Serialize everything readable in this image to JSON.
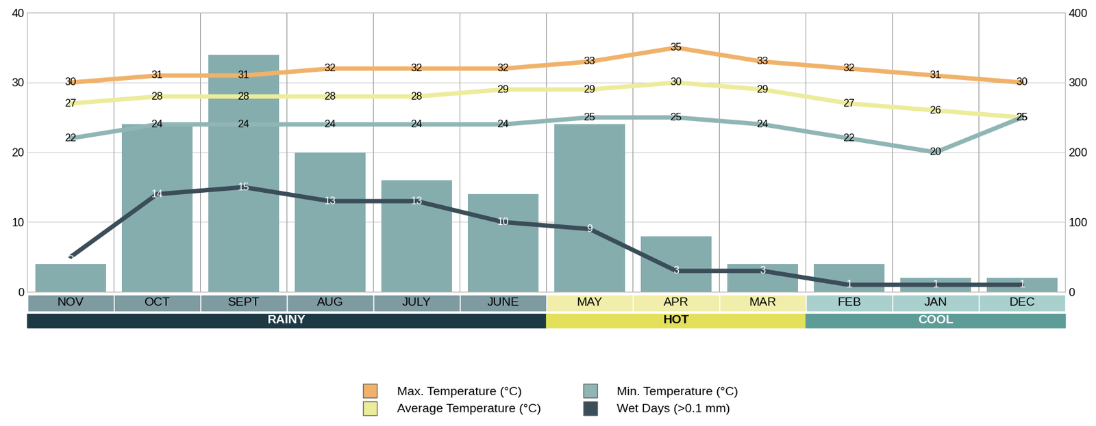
{
  "chart_data": {
    "type": "line",
    "categories": [
      "NOV",
      "OCT",
      "SEPT",
      "AUG",
      "JULY",
      "JUNE",
      "MAY",
      "APR",
      "MAR",
      "FEB",
      "JAN",
      "DEC"
    ],
    "series": [
      {
        "type": "bar",
        "axis": "y2",
        "color": "#86adae",
        "values": [
          40,
          240,
          340,
          200,
          160,
          140,
          240,
          80,
          40,
          40,
          20,
          20
        ]
      },
      {
        "name": "Max. Temperature (°C)",
        "type": "line",
        "color": "#f0b26a",
        "data_labels": true,
        "values": [
          30,
          31,
          31,
          32,
          32,
          32,
          33,
          35,
          33,
          32,
          31,
          30
        ]
      },
      {
        "name": "Average Temperature (°C)",
        "type": "line",
        "color": "#ecec9c",
        "data_labels": true,
        "values": [
          27,
          28,
          28,
          28,
          28,
          29,
          29,
          30,
          29,
          27,
          26,
          25
        ]
      },
      {
        "name": "Min. Temperature (°C)",
        "type": "line",
        "color": "#8fb5b4",
        "data_labels": true,
        "values": [
          22,
          24,
          24,
          24,
          24,
          24,
          25,
          25,
          24,
          22,
          20,
          25
        ]
      },
      {
        "name": "Wet Days (>0.1 mm)",
        "type": "line",
        "color": "#3a4d59",
        "data_labels": true,
        "values": [
          5,
          14,
          15,
          13,
          13,
          10,
          9,
          3,
          3,
          1,
          1,
          1
        ]
      }
    ],
    "seasons": [
      {
        "label": "RAINY",
        "color": "#1d3a44",
        "months": [
          "NOV",
          "OCT",
          "SEPT",
          "AUG",
          "JULY",
          "JUNE"
        ]
      },
      {
        "label": "HOT",
        "color": "#e3e15c",
        "months": [
          "MAY",
          "APR",
          "MAR"
        ]
      },
      {
        "label": "COOL",
        "color": "#5e9c98",
        "months": [
          "FEB",
          "JAN",
          "DEC"
        ]
      }
    ],
    "ylim": [
      0,
      40
    ],
    "yticks": [
      0,
      10,
      20,
      30,
      40
    ],
    "y2lim": [
      0,
      400
    ],
    "y2ticks": [
      0,
      100,
      200,
      300,
      400
    ],
    "grid": true,
    "legend": "lower center"
  }
}
